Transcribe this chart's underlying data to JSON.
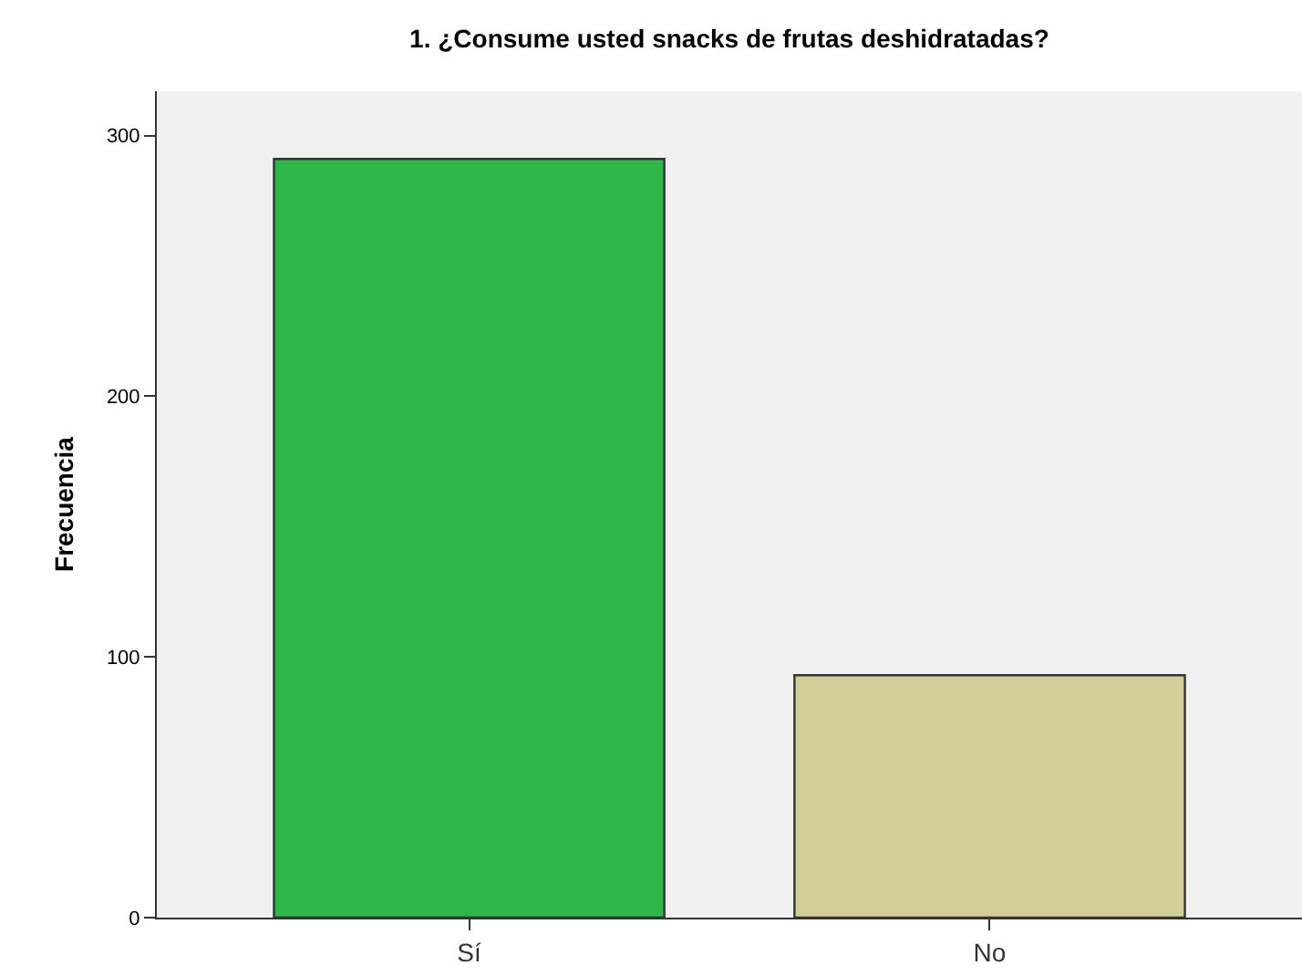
{
  "chart_data": {
    "type": "bar",
    "title": "1. ¿Consume usted snacks de frutas deshidratadas?",
    "ylabel": "Frecuencia",
    "categories": [
      "Sí",
      "No"
    ],
    "values": [
      291,
      93
    ],
    "colors": [
      "#2eb84a",
      "#d4cf98"
    ],
    "ylim": [
      0,
      317
    ],
    "yticks": [
      0,
      100,
      200,
      300
    ],
    "grid": false
  }
}
